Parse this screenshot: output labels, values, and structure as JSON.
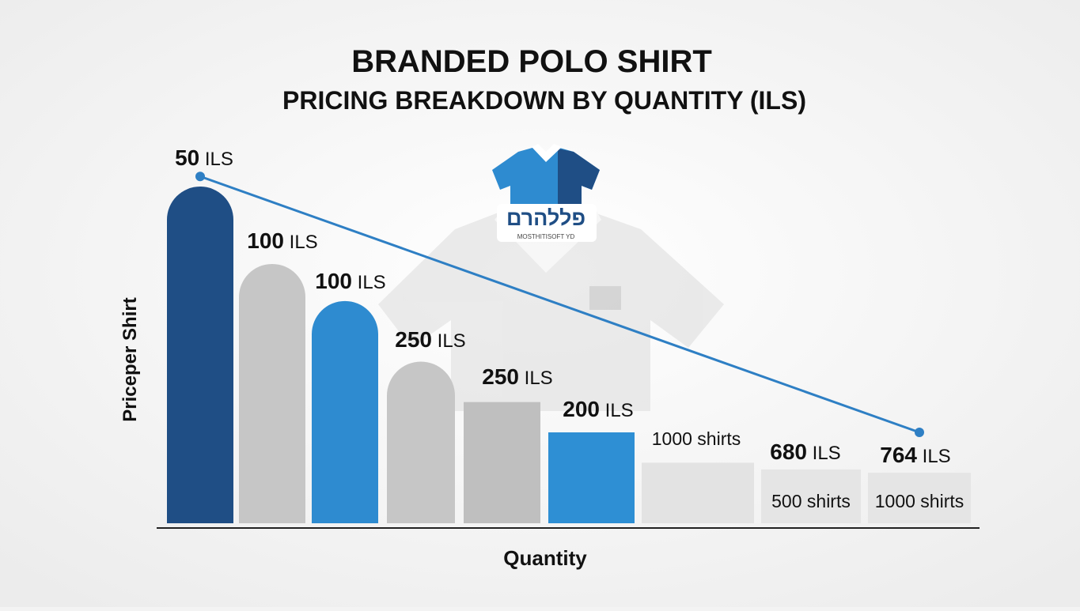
{
  "chart_data": {
    "type": "bar",
    "title": "BRANDED POLO SHIRT",
    "subtitle": "PRICING BREAKDOWN BY QUANTITY (ILS)",
    "y_label": "Priceper Shirt",
    "x_label": "Quantity",
    "logo_text": "פללהרם",
    "logo_subtext": "MOSTHITISOFT YD",
    "values": [
      100,
      77,
      66,
      48,
      36,
      27,
      18,
      16,
      15
    ],
    "colors": [
      "#1f4e85",
      "#c6c6c6",
      "#2e8bd0",
      "#c6c6c6",
      "#bfbfbf",
      "#2e8fd4",
      "#e3e3e3",
      "#e5e5e5",
      "#e5e5e5"
    ],
    "labels": [
      "50 ILS",
      "100 ILS",
      "100 ILS",
      "250 ILS",
      "250 ILS",
      "200 ILS",
      "1000 shirts",
      "680 ILS",
      "764 ILS"
    ],
    "inner_labels": [
      null,
      null,
      null,
      null,
      null,
      null,
      null,
      "500 shirts",
      "1000 shirts"
    ],
    "ylim": [
      0,
      110
    ],
    "trend": {
      "color": "#2e7fc4",
      "x": [
        1,
        9
      ],
      "values": [
        103,
        27
      ]
    }
  }
}
